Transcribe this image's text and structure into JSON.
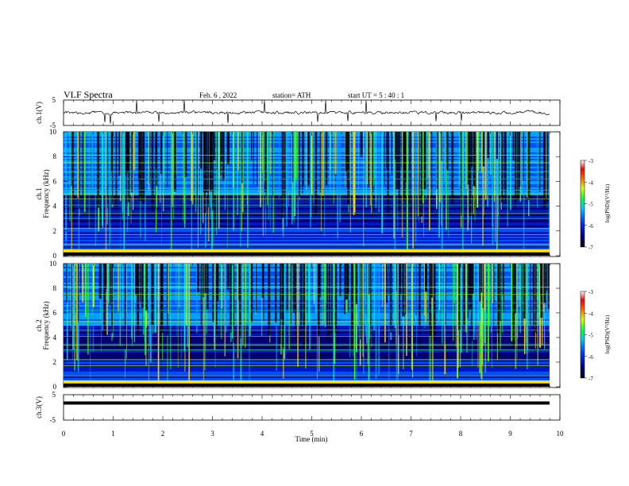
{
  "header": {
    "title": "VLF  Spectra",
    "date": "Feb. 6  , 2022",
    "station": "station= ATH",
    "start": "start  UT  =   5  : 40 : 1"
  },
  "chart_data": [
    {
      "type": "line",
      "panel": "ch1-voltage",
      "ylabel": "ch.1(V)",
      "ylim": [
        -5,
        5
      ],
      "yticks": [
        "5",
        "-5"
      ],
      "xlim": [
        0,
        10
      ],
      "baseline": 0.0
    },
    {
      "type": "heatmap",
      "panel": "ch1-spectrogram",
      "ylabel_top": "ch.1",
      "ylabel": "Frequency  (kHz)",
      "ylim": [
        0,
        10
      ],
      "yticks": [
        "0",
        "2",
        "4",
        "6",
        "8",
        "10"
      ],
      "xlim": [
        0,
        9.8
      ],
      "colorbar": {
        "label": "log(PSD)(V²/Hz)",
        "range": [
          -7,
          -3
        ],
        "ticks": [
          "-3",
          "-4",
          "-5",
          "-6",
          "-7"
        ]
      }
    },
    {
      "type": "heatmap",
      "panel": "ch2-spectrogram",
      "ylabel_top": "ch.2",
      "ylabel": "Frequency  (kHz)",
      "ylim": [
        0,
        10
      ],
      "yticks": [
        "0",
        "2",
        "4",
        "6",
        "8",
        "10"
      ],
      "xlim": [
        0,
        9.8
      ],
      "colorbar": {
        "label": "log(PSD)(V²/Hz)",
        "range": [
          -7,
          -3
        ],
        "ticks": [
          "-3",
          "-4",
          "-5",
          "-6",
          "-7"
        ]
      }
    },
    {
      "type": "line",
      "panel": "ch3-voltage",
      "ylabel": "ch.3(V)",
      "ylim": [
        -5,
        5
      ],
      "yticks": [
        "5",
        "-5"
      ],
      "xlim": [
        0,
        10
      ],
      "baseline": 1.7
    }
  ],
  "xaxis": {
    "label": "Time  (min)",
    "ticks": [
      "0",
      "1",
      "2",
      "3",
      "4",
      "5",
      "6",
      "7",
      "8",
      "9",
      "10"
    ]
  }
}
